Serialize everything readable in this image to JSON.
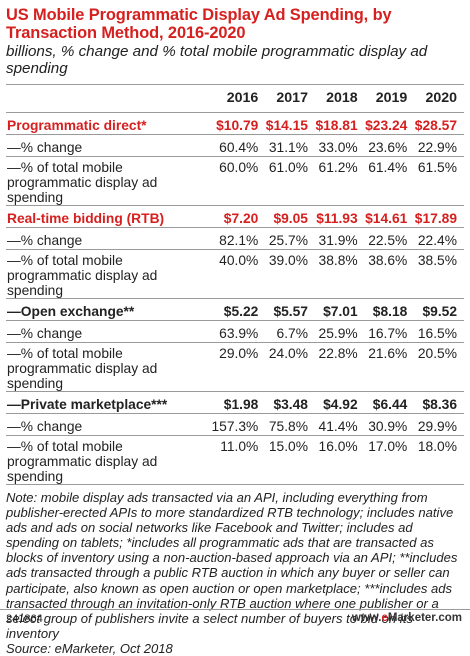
{
  "chart_data": {
    "type": "table",
    "title": "US Mobile Programmatic Display Ad Spending, by Transaction Method, 2016-2020",
    "subtitle": "billions, % change and % total mobile programmatic display ad spending",
    "columns": [
      "",
      "2016",
      "2017",
      "2018",
      "2019",
      "2020"
    ],
    "rows": [
      {
        "label": "Programmatic direct*",
        "values": [
          "$10.79",
          "$14.15",
          "$18.81",
          "$23.24",
          "$28.57"
        ],
        "style": "red"
      },
      {
        "label": "—% change",
        "values": [
          "60.4%",
          "31.1%",
          "33.0%",
          "23.6%",
          "22.9%"
        ],
        "style": "normal"
      },
      {
        "label": "—% of total mobile programmatic display ad spending",
        "values": [
          "60.0%",
          "61.0%",
          "61.2%",
          "61.4%",
          "61.5%"
        ],
        "style": "normal"
      },
      {
        "label": "Real-time bidding (RTB)",
        "values": [
          "$7.20",
          "$9.05",
          "$11.93",
          "$14.61",
          "$17.89"
        ],
        "style": "red"
      },
      {
        "label": "—% change",
        "values": [
          "82.1%",
          "25.7%",
          "31.9%",
          "22.5%",
          "22.4%"
        ],
        "style": "normal"
      },
      {
        "label": "—% of total mobile programmatic display ad spending",
        "values": [
          "40.0%",
          "39.0%",
          "38.8%",
          "38.6%",
          "38.5%"
        ],
        "style": "normal"
      },
      {
        "label": "—Open exchange**",
        "values": [
          "$5.22",
          "$5.57",
          "$7.01",
          "$8.18",
          "$9.52"
        ],
        "style": "bold"
      },
      {
        "label": "—% change",
        "values": [
          "63.9%",
          "6.7%",
          "25.9%",
          "16.7%",
          "16.5%"
        ],
        "style": "normal"
      },
      {
        "label": "—% of total mobile programmatic display ad spending",
        "values": [
          "29.0%",
          "24.0%",
          "22.8%",
          "21.6%",
          "20.5%"
        ],
        "style": "normal"
      },
      {
        "label": "—Private marketplace***",
        "values": [
          "$1.98",
          "$3.48",
          "$4.92",
          "$6.44",
          "$8.36"
        ],
        "style": "bold"
      },
      {
        "label": "—% change",
        "values": [
          "157.3%",
          "75.8%",
          "41.4%",
          "30.9%",
          "29.9%"
        ],
        "style": "normal"
      },
      {
        "label": "—% of total mobile programmatic display ad spending",
        "values": [
          "11.0%",
          "15.0%",
          "16.0%",
          "17.0%",
          "18.0%"
        ],
        "style": "normal"
      }
    ],
    "note": "Note: mobile display ads transacted via an API, including everything from publisher-erected APIs to more standardized RTB technology; includes native ads and ads on social networks like Facebook and Twitter; includes ad spending on tablets; *includes all programmatic ads that are transacted as blocks of inventory using a non-auction-based approach via an API; **includes ads transacted through a public RTB auction in which any buyer or seller can participate, also known as open auction or open marketplace; ***includes ads transacted through an invitation-only RTB auction where one publisher or a select group of publishers invite a select number of buyers to bid on its inventory",
    "source": "Source: eMarketer, Oct 2018",
    "colors": {
      "accent": "#d6201f",
      "text": "#222222",
      "rule": "#9a9a9a"
    }
  },
  "footer": {
    "chart_id": "241864",
    "brand_prefix": "www.",
    "brand_e": "e",
    "brand_suffix": "Marketer.com"
  }
}
